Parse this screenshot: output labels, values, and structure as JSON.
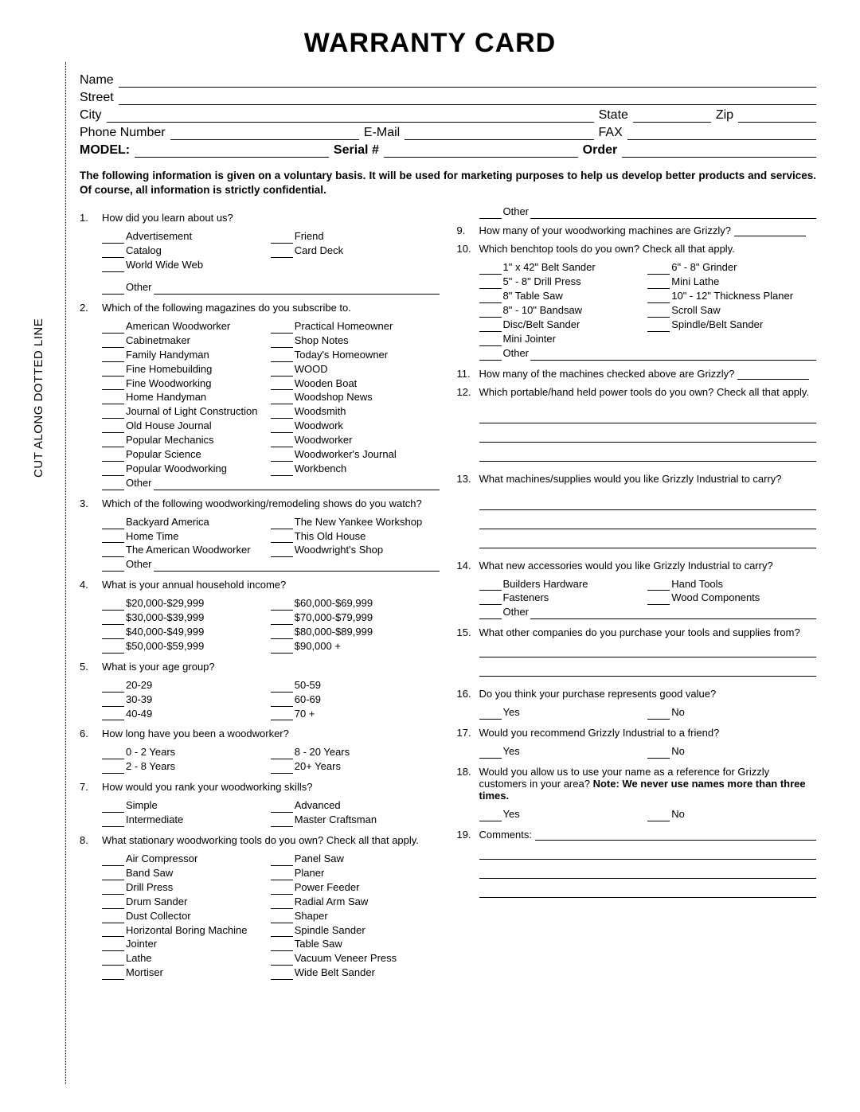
{
  "title": "WARRANTY CARD",
  "cut_label": "CUT ALONG DOTTED LINE",
  "header": {
    "name": "Name",
    "street": "Street",
    "city": "City",
    "state": "State",
    "zip": "Zip",
    "phone": "Phone Number",
    "email": "E-Mail",
    "fax": "FAX",
    "model": "MODEL:",
    "serial": "Serial #",
    "order": "Order"
  },
  "disclaimer": "The following information is given on a voluntary basis. It will be used for marketing purposes to help us develop better products and services. Of course, all information is strictly confidential.",
  "q1": {
    "num": "1.",
    "text": "How did you learn about us?",
    "left": [
      "Advertisement",
      "Catalog",
      "World Wide Web"
    ],
    "right": [
      "Friend",
      "Card Deck"
    ],
    "other": "Other"
  },
  "q2": {
    "num": "2.",
    "text": "Which of the following magazines do you subscribe to.",
    "left": [
      "American Woodworker",
      "Cabinetmaker",
      "Family Handyman",
      "Fine Homebuilding",
      "Fine Woodworking",
      "Home Handyman",
      "Journal of Light Construction",
      "Old House Journal",
      "Popular Mechanics",
      "Popular Science",
      "Popular Woodworking"
    ],
    "right": [
      "Practical Homeowner",
      "Shop Notes",
      "Today's Homeowner",
      "WOOD",
      "Wooden Boat",
      "Woodshop News",
      "Woodsmith",
      "Woodwork",
      "Woodworker",
      "Woodworker's Journal",
      "Workbench"
    ],
    "other": "Other"
  },
  "q3": {
    "num": "3.",
    "text": "Which of the following woodworking/remodeling shows do you watch?",
    "left": [
      "Backyard America",
      "Home Time",
      "The American Woodworker"
    ],
    "right": [
      "The New Yankee Workshop",
      "This Old House",
      "Woodwright's Shop"
    ],
    "other": "Other"
  },
  "q4": {
    "num": "4.",
    "text": "What is your annual household income?",
    "left": [
      "$20,000-$29,999",
      "$30,000-$39,999",
      "$40,000-$49,999",
      "$50,000-$59,999"
    ],
    "right": [
      "$60,000-$69,999",
      "$70,000-$79,999",
      "$80,000-$89,999",
      "$90,000 +"
    ]
  },
  "q5": {
    "num": "5.",
    "text": "What is your age group?",
    "left": [
      "20-29",
      "30-39",
      "40-49"
    ],
    "right": [
      "50-59",
      "60-69",
      "70 +"
    ]
  },
  "q6": {
    "num": "6.",
    "text": "How long have you been a woodworker?",
    "left": [
      "0 - 2 Years",
      "2 - 8 Years"
    ],
    "right": [
      "8 - 20 Years",
      "20+ Years"
    ]
  },
  "q7": {
    "num": "7.",
    "text": "How would you rank your woodworking skills?",
    "left": [
      "Simple",
      "Intermediate"
    ],
    "right": [
      "Advanced",
      "Master Craftsman"
    ]
  },
  "q8": {
    "num": "8.",
    "text": "What stationary woodworking tools do you own? Check all that apply.",
    "left": [
      "Air Compressor",
      "Band Saw",
      "Drill Press",
      "Drum Sander",
      "Dust Collector",
      "Horizontal Boring Machine",
      "Jointer",
      "Lathe",
      "Mortiser"
    ],
    "right": [
      "Panel Saw",
      "Planer",
      "Power Feeder",
      "Radial Arm Saw",
      "Shaper",
      "Spindle Sander",
      "Table Saw",
      "Vacuum Veneer Press",
      "Wide Belt Sander"
    ],
    "other_top": "Other"
  },
  "q9": {
    "num": "9.",
    "text": "How many of your woodworking machines are Grizzly?"
  },
  "q10": {
    "num": "10.",
    "text": "Which benchtop tools do you own? Check all that apply.",
    "left": [
      "1\" x 42\" Belt Sander",
      "5\" - 8\" Drill Press",
      "8\" Table Saw",
      "8\" - 10\" Bandsaw",
      "Disc/Belt Sander",
      "Mini Jointer"
    ],
    "right": [
      "6\" - 8\" Grinder",
      "Mini Lathe",
      "10\" - 12\" Thickness Planer",
      "Scroll Saw",
      "Spindle/Belt Sander"
    ],
    "other": "Other"
  },
  "q11": {
    "num": "11.",
    "text": "How many of the machines checked above are Grizzly?"
  },
  "q12": {
    "num": "12.",
    "text": "Which portable/hand held power tools do you own? Check all that apply."
  },
  "q13": {
    "num": "13.",
    "text": "What machines/supplies would you like Grizzly Industrial to carry?"
  },
  "q14": {
    "num": "14.",
    "text": "What new accessories would you like Grizzly Industrial to carry?",
    "left": [
      "Builders Hardware",
      "Fasteners"
    ],
    "right": [
      "Hand Tools",
      "Wood Components"
    ],
    "other": "Other"
  },
  "q15": {
    "num": "15.",
    "text": "What other companies do you purchase your tools and supplies from?"
  },
  "q16": {
    "num": "16.",
    "text": "Do you think your purchase represents good value?",
    "yes": "Yes",
    "no": "No"
  },
  "q17": {
    "num": "17.",
    "text": "Would you recommend Grizzly Industrial to a friend?",
    "yes": "Yes",
    "no": "No"
  },
  "q18": {
    "num": "18.",
    "text_a": "Would you allow us to use your name as a reference for Grizzly customers in your area? ",
    "text_b": "Note: We never use names more than three times.",
    "yes": "Yes",
    "no": "No"
  },
  "q19": {
    "num": "19.",
    "text": "Comments:"
  }
}
